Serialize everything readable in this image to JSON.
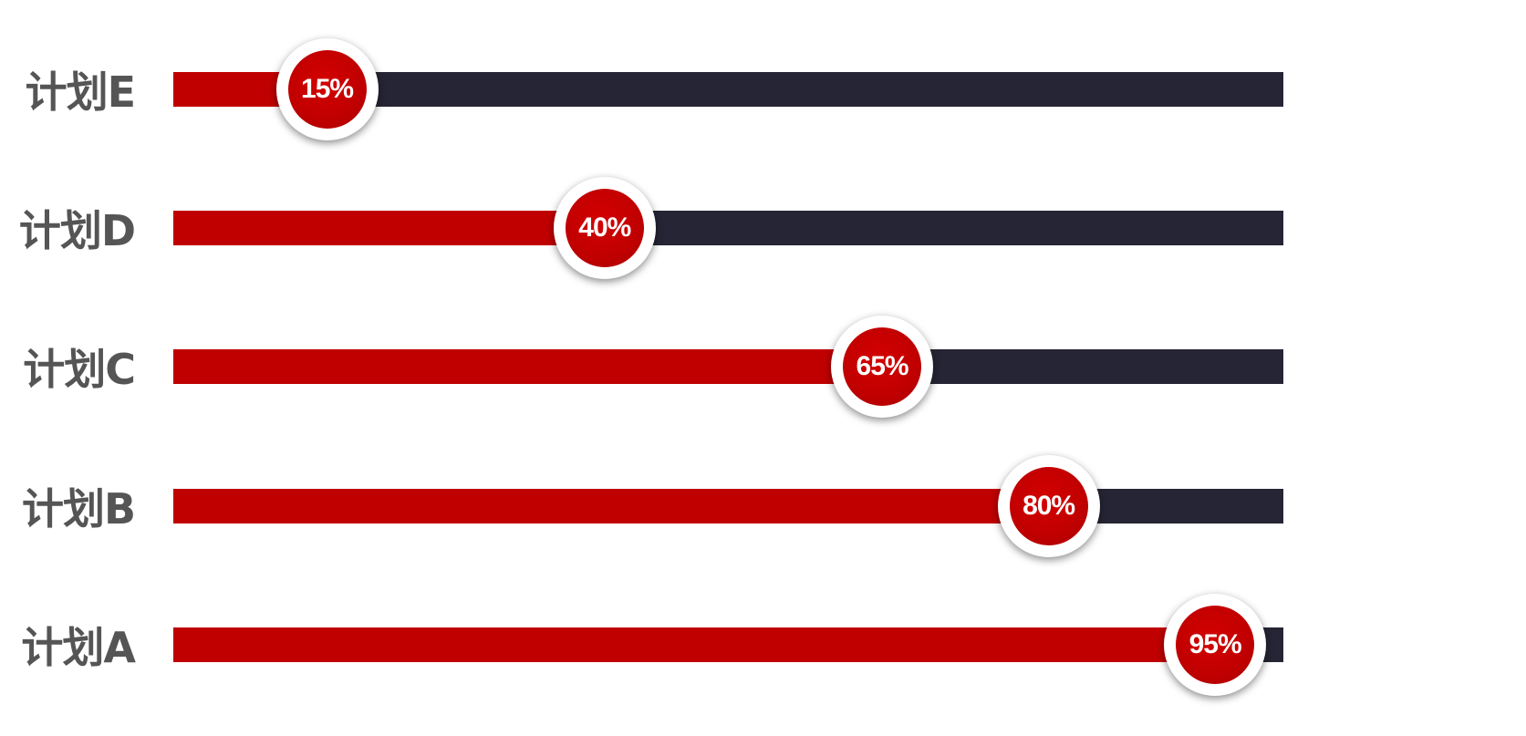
{
  "chart_data": {
    "type": "bar",
    "orientation": "horizontal",
    "categories": [
      "计划E",
      "计划D",
      "计划C",
      "计划B",
      "计划A"
    ],
    "values": [
      15,
      40,
      65,
      80,
      95
    ],
    "value_labels": [
      "15%",
      "40%",
      "65%",
      "80%",
      "95%"
    ],
    "xlim": [
      0,
      100
    ],
    "title": "",
    "xlabel": "",
    "ylabel": "",
    "grid": false,
    "legend": "none",
    "colors": {
      "fill": "#c00000",
      "track": "#252535",
      "label": "#555555",
      "knob_ring": "#ffffff",
      "knob_text": "#ffffff"
    }
  }
}
